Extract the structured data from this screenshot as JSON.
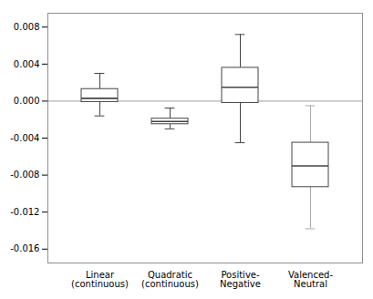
{
  "chart_data": {
    "type": "box",
    "categories": [
      "Linear\n(continuous)",
      "Quadratic\n(continuous)",
      "Positive-\nNegative",
      "Valenced-\nNeutral"
    ],
    "boxes": [
      {
        "median": 0.0003,
        "q1": -0.0001,
        "q3": 0.0013,
        "whisker_low": -0.0016,
        "whisker_high": 0.003
      },
      {
        "median": -0.0022,
        "q1": -0.0025,
        "q3": -0.0019,
        "whisker_low": -0.003,
        "whisker_high": -0.00075
      },
      {
        "median": 0.0015,
        "q1": -0.0002,
        "q3": 0.0036,
        "whisker_low": -0.0045,
        "whisker_high": 0.0072
      },
      {
        "median": -0.007,
        "q1": -0.0093,
        "q3": -0.0045,
        "whisker_low": -0.0138,
        "whisker_high": -0.0005
      }
    ],
    "colors": [
      "#444444",
      "#444444",
      "#444444",
      "#aaaaaa"
    ],
    "reference_line": 0,
    "ylim": [
      -0.0175,
      0.0095
    ],
    "yticks": [
      -0.016,
      -0.012,
      -0.008,
      -0.004,
      {
        "value": 0,
        "label": "0.000"
      },
      0.004,
      0.008
    ],
    "grid": false
  }
}
